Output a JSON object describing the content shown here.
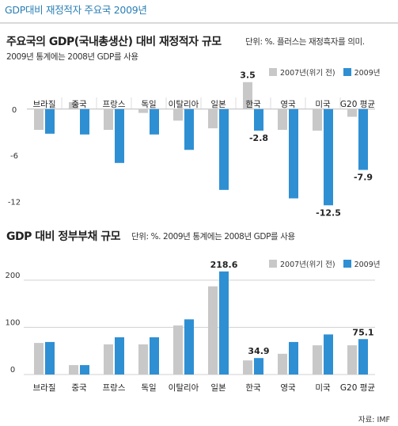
{
  "page_title": "GDP대비 재정적자 주요국 2009년",
  "colors": {
    "y2007": "#c8c8c8",
    "y2009": "#2f8fd3",
    "title": "#2a7fb5"
  },
  "source": "자료: IMF",
  "chart_data": [
    {
      "type": "bar",
      "title": "주요국의 GDP(국내총생산) 대비 재정적자 규모",
      "subtitle_right": "단위: %. 플러스는 재정흑자를 의미.",
      "subtitle_left": "2009년 통계에는 2008년 GDP를 사용",
      "categories": [
        "브라질",
        "중국",
        "프랑스",
        "독일",
        "이탈리아",
        "일본",
        "한국",
        "영국",
        "미국",
        "G20 평균"
      ],
      "series": [
        {
          "name": "2007년(위기 전)",
          "values": [
            -2.7,
            0.9,
            -2.7,
            -0.5,
            -1.5,
            -2.5,
            3.5,
            -2.7,
            -2.8,
            -1.0
          ]
        },
        {
          "name": "2009년",
          "values": [
            -3.2,
            -3.3,
            -7.0,
            -3.3,
            -5.3,
            -10.5,
            -2.8,
            -11.6,
            -12.5,
            -7.9
          ]
        }
      ],
      "yticks": [
        0,
        -6,
        -12
      ],
      "ylim": [
        -13.5,
        4.5
      ],
      "data_labels": [
        {
          "series": 0,
          "category": "한국",
          "text": "3.5"
        },
        {
          "series": 1,
          "category": "한국",
          "text": "-2.8"
        },
        {
          "series": 1,
          "category": "미국",
          "text": "-12.5"
        },
        {
          "series": 1,
          "category": "G20 평균",
          "text": "-7.9"
        }
      ],
      "legend": [
        "2007년(위기 전)",
        "2009년"
      ],
      "grid": false
    },
    {
      "type": "bar",
      "title": "GDP 대비 정부부채 규모",
      "subtitle_right": "단위: %. 2009년 통계에는 2008년 GDP를 사용",
      "categories": [
        "브라질",
        "중국",
        "프랑스",
        "독일",
        "이탈리아",
        "일본",
        "한국",
        "영국",
        "미국",
        "G20 평균"
      ],
      "series": [
        {
          "name": "2007년(위기 전)",
          "values": [
            67,
            20,
            64,
            64,
            104,
            187,
            30,
            44,
            62,
            62
          ]
        },
        {
          "name": "2009년",
          "values": [
            69,
            20,
            79,
            79,
            117,
            218.6,
            34.9,
            69,
            85,
            75.1
          ]
        }
      ],
      "yticks": [
        0,
        100,
        200
      ],
      "ylim": [
        0,
        230
      ],
      "data_labels": [
        {
          "series": 1,
          "category": "일본",
          "text": "218.6"
        },
        {
          "series": 1,
          "category": "한국",
          "text": "34.9"
        },
        {
          "series": 1,
          "category": "G20 평균",
          "text": "75.1"
        }
      ],
      "legend": [
        "2007년(위기 전)",
        "2009년"
      ],
      "grid": true
    }
  ]
}
